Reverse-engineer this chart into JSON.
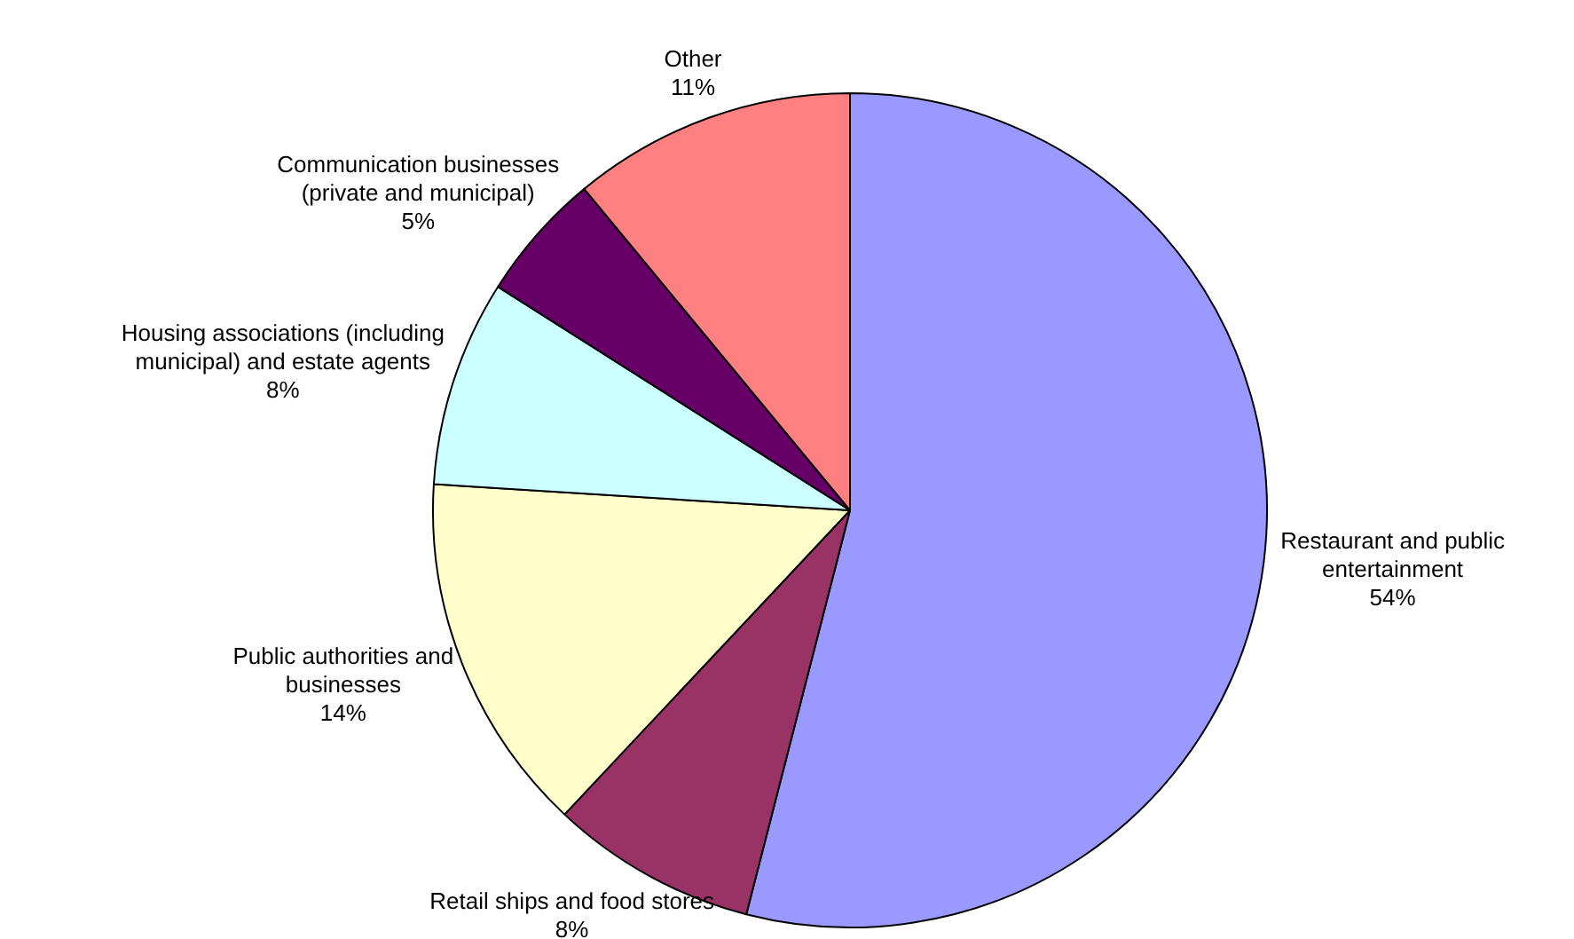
{
  "chart_data": {
    "type": "pie",
    "categories": [
      "Restaurant and public entertainment",
      "Retail ships and food stores",
      "Public authorities and businesses",
      "Housing associations (including municipal) and estate agents",
      "Communication businesses (private and municipal)",
      "Other"
    ],
    "values": [
      54,
      8,
      14,
      8,
      5,
      11
    ],
    "value_labels": [
      "54%",
      "8%",
      "14%",
      "8%",
      "5%",
      "11%"
    ],
    "colors": [
      "#9999ff",
      "#993366",
      "#ffffcc",
      "#ccffff",
      "#660066",
      "#ff8080"
    ],
    "legend": false
  }
}
